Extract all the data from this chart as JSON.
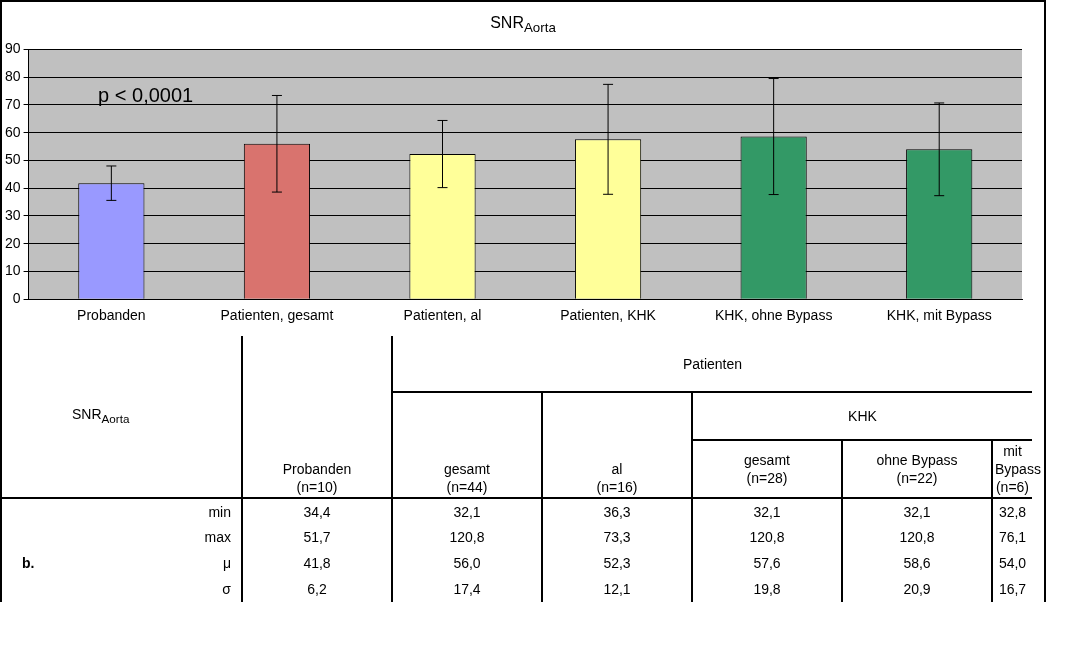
{
  "chart_data": [
    {
      "type": "bar",
      "title": "SNR$_{Aorta}$",
      "categories": [
        "Probanden",
        "Patienten, gesamt",
        "Patienten, al",
        "Patienten, KHK",
        "KHK, ohne Bypass",
        "KHK, mit Bypass"
      ],
      "values": [
        41.8,
        56.0,
        52.3,
        57.6,
        58.6,
        54.0
      ],
      "errors": [
        6.2,
        17.4,
        12.1,
        19.8,
        20.9,
        16.7
      ],
      "colors": [
        "#9999ff",
        "#d9736e",
        "#ffff99",
        "#ffff99",
        "#339966",
        "#339966"
      ],
      "ylim": [
        0,
        90
      ],
      "yticks": [
        0,
        10,
        20,
        30,
        40,
        50,
        60,
        70,
        80,
        90
      ],
      "grid": "y",
      "legend": false,
      "annotations": [
        "p < 0,0001"
      ]
    },
    {
      "type": "other",
      "title": "SNR$_{Aorta}$",
      "categories": [
        "Probanden\n(n=10)",
        "gesamt\n(n=44)",
        "al\n(n=16)",
        "gesamt\n(n=28)",
        "ohne Bypass\n(n=22)",
        "mit Bypass\n(n=6)"
      ],
      "y_categories": [
        "min",
        "max",
        "μ",
        "σ"
      ],
      "cell_labels": [
        [
          "34,4",
          "32,1",
          "36,3",
          "32,1",
          "32,1",
          "32,8"
        ],
        [
          "51,7",
          "120,8",
          "73,3",
          "120,8",
          "120,8",
          "76,1"
        ],
        [
          "41,8",
          "56,0",
          "52,3",
          "57,6",
          "58,6",
          "54,0"
        ],
        [
          "6,2",
          "17,4",
          "12,1",
          "19,8",
          "20,9",
          "16,7"
        ]
      ],
      "annotations": [
        "Patienten",
        "KHK",
        "b."
      ]
    }
  ]
}
